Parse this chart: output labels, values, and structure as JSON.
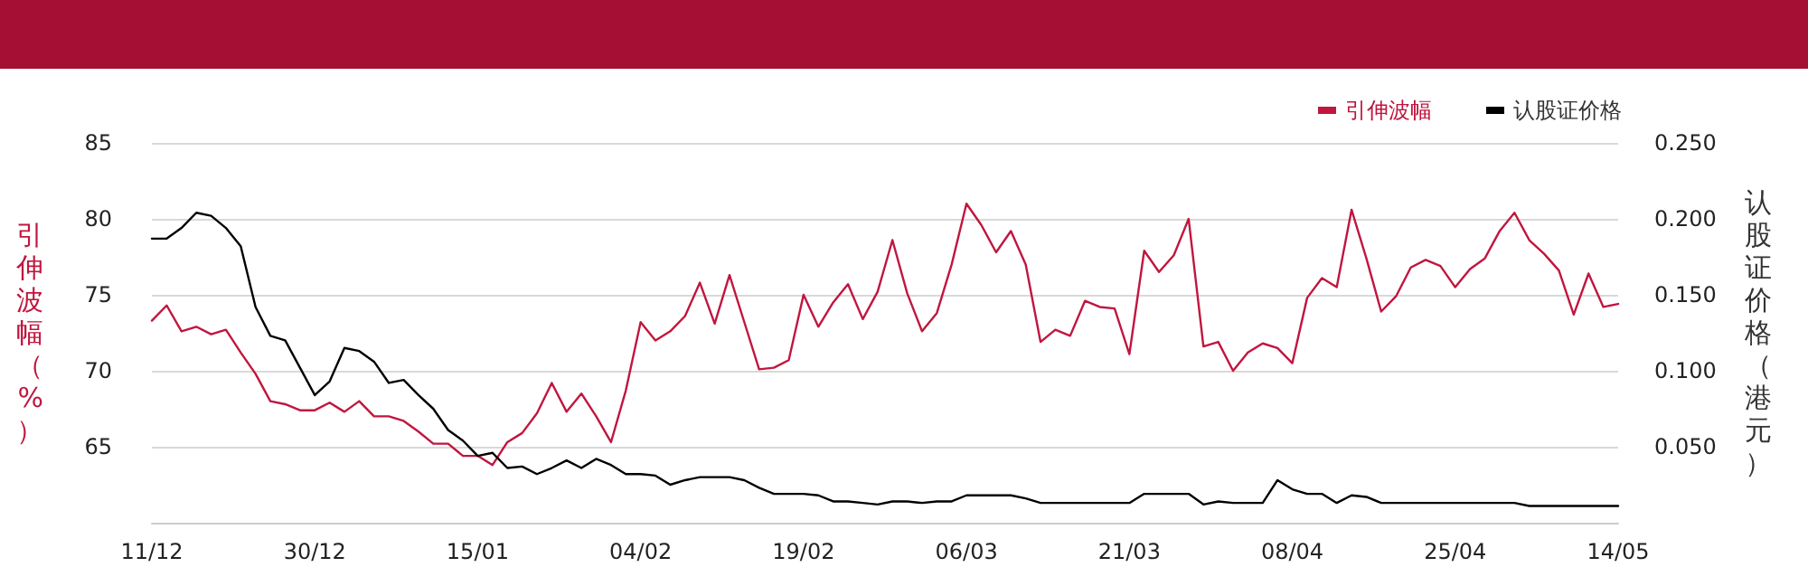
{
  "chart_data": {
    "type": "line",
    "categories": [
      "11/12",
      null,
      null,
      null,
      null,
      null,
      null,
      null,
      null,
      null,
      null,
      "30/12",
      null,
      null,
      null,
      null,
      null,
      null,
      null,
      null,
      null,
      null,
      "15/01",
      null,
      null,
      null,
      null,
      null,
      null,
      null,
      null,
      null,
      null,
      "04/02",
      null,
      null,
      null,
      null,
      null,
      null,
      null,
      null,
      null,
      null,
      "19/02",
      null,
      null,
      null,
      null,
      null,
      null,
      null,
      null,
      null,
      null,
      "06/03",
      null,
      null,
      null,
      null,
      null,
      null,
      null,
      null,
      null,
      null,
      "21/03",
      null,
      null,
      null,
      null,
      null,
      null,
      null,
      null,
      null,
      null,
      "08/04",
      null,
      null,
      null,
      null,
      null,
      null,
      null,
      null,
      null,
      null,
      "25/04",
      null,
      null,
      null,
      null,
      null,
      null,
      null,
      null,
      null,
      null,
      "14/05"
    ],
    "series": [
      {
        "name": "引伸波幅",
        "color": "#c0163f",
        "values": [
          73.3,
          74.3,
          72.6,
          72.9,
          72.4,
          72.7,
          71.2,
          69.8,
          68.0,
          67.8,
          67.4,
          67.4,
          67.9,
          67.3,
          68.0,
          67.0,
          67.0,
          66.7,
          66.0,
          65.2,
          65.2,
          64.4,
          64.4,
          63.8,
          65.3,
          65.9,
          67.2,
          69.2,
          67.3,
          68.5,
          67.0,
          65.3,
          68.7,
          73.2,
          72.0,
          72.6,
          73.6,
          75.8,
          73.1,
          76.3,
          73.2,
          70.1,
          70.2,
          70.7,
          75.0,
          72.9,
          74.5,
          75.7,
          73.4,
          75.2,
          78.6,
          75.1,
          72.6,
          73.8,
          77.0,
          81.0,
          79.6,
          77.8,
          79.2,
          77.0,
          71.9,
          72.7,
          72.3,
          74.6,
          74.2,
          74.1,
          71.1,
          77.9,
          76.5,
          77.6,
          80.0,
          71.6,
          71.9,
          70.0,
          71.2,
          71.8,
          71.5,
          70.5,
          74.8,
          76.1,
          75.5,
          80.6,
          77.4,
          73.9,
          74.9,
          76.8,
          77.3,
          76.9,
          75.5,
          76.7,
          77.4,
          79.2,
          80.4,
          78.6,
          77.7,
          76.6,
          73.7,
          76.4,
          74.2,
          74.4
        ]
      },
      {
        "name": "认股证价格",
        "color": "#000000",
        "axis": "y2",
        "values": [
          0.187,
          0.187,
          0.194,
          0.204,
          0.202,
          0.194,
          0.182,
          0.142,
          0.123,
          0.12,
          0.102,
          0.084,
          0.093,
          0.115,
          0.113,
          0.106,
          0.092,
          0.094,
          0.084,
          0.075,
          0.061,
          0.054,
          0.044,
          0.046,
          0.036,
          0.037,
          0.032,
          0.036,
          0.041,
          0.036,
          0.042,
          0.038,
          0.032,
          0.032,
          0.031,
          0.025,
          0.028,
          0.03,
          0.03,
          0.03,
          0.028,
          0.023,
          0.019,
          0.019,
          0.019,
          0.018,
          0.014,
          0.014,
          0.013,
          0.012,
          0.014,
          0.014,
          0.013,
          0.014,
          0.014,
          0.018,
          0.018,
          0.018,
          0.018,
          0.016,
          0.013,
          0.013,
          0.013,
          0.013,
          0.013,
          0.013,
          0.013,
          0.019,
          0.019,
          0.019,
          0.019,
          0.012,
          0.014,
          0.013,
          0.013,
          0.013,
          0.028,
          0.022,
          0.019,
          0.019,
          0.013,
          0.018,
          0.017,
          0.013,
          0.013,
          0.013,
          0.013,
          0.013,
          0.013,
          0.013,
          0.013,
          0.013,
          0.013,
          0.011,
          0.011,
          0.011,
          0.011,
          0.011,
          0.011,
          0.011
        ]
      }
    ],
    "ylabel": "引伸波幅（%）",
    "y2label": "认股证价格（港元）",
    "ylim": [
      60,
      85
    ],
    "yticks": [
      65,
      70,
      75,
      80,
      85
    ],
    "y2lim": [
      0,
      0.25
    ],
    "y2ticks": [
      {
        "value": 0.05,
        "label": "0.050"
      },
      {
        "value": 0.1,
        "label": "0.100"
      },
      {
        "value": 0.15,
        "label": "0.150"
      },
      {
        "value": 0.2,
        "label": "0.200"
      },
      {
        "value": 0.25,
        "label": "0.250"
      }
    ],
    "grid": "y",
    "legend": "top right",
    "marker": "none",
    "line_style": "solid"
  }
}
